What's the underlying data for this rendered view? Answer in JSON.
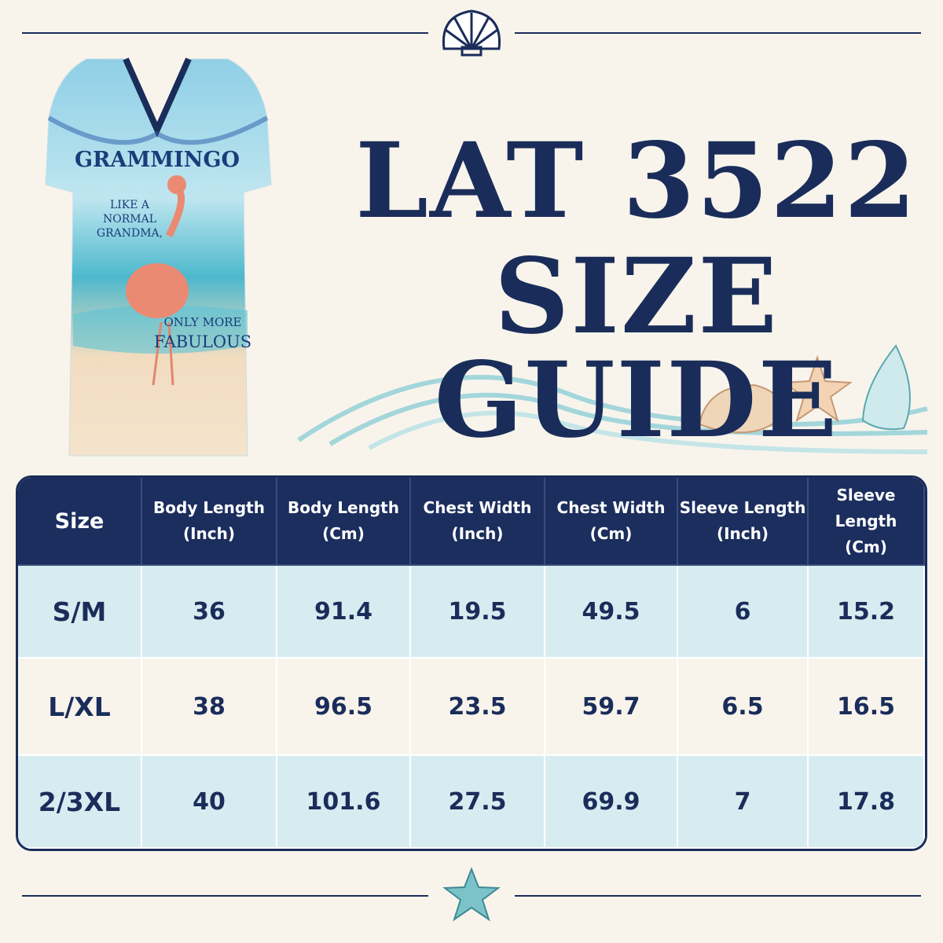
{
  "header": {
    "title_lines": [
      "LAT 3522",
      "SIZE GUIDE"
    ]
  },
  "product": {
    "brand": "GRAMMINGO",
    "tagline": [
      "LIKE A",
      "NORMAL",
      "GRANDMA,"
    ],
    "tagline_end": [
      "ONLY MORE",
      "FABULOUS"
    ]
  },
  "table": {
    "columns": [
      {
        "name": "Size"
      },
      {
        "name": "Body Length",
        "unit": "(Inch)"
      },
      {
        "name": "Body Length",
        "unit": "(Cm)"
      },
      {
        "name": "Chest Width",
        "unit": "(Inch)"
      },
      {
        "name": "Chest Width",
        "unit": "(Cm)"
      },
      {
        "name": "Sleeve Length",
        "unit": "(Inch)"
      },
      {
        "name": "Sleeve Length",
        "unit": "(Cm)"
      }
    ],
    "rows": [
      [
        "S/M",
        "36",
        "91.4",
        "19.5",
        "49.5",
        "6",
        "15.2"
      ],
      [
        "L/XL",
        "38",
        "96.5",
        "23.5",
        "59.7",
        "6.5",
        "16.5"
      ],
      [
        "2/3XL",
        "40",
        "101.6",
        "27.5",
        "69.9",
        "7",
        "17.8"
      ]
    ]
  }
}
